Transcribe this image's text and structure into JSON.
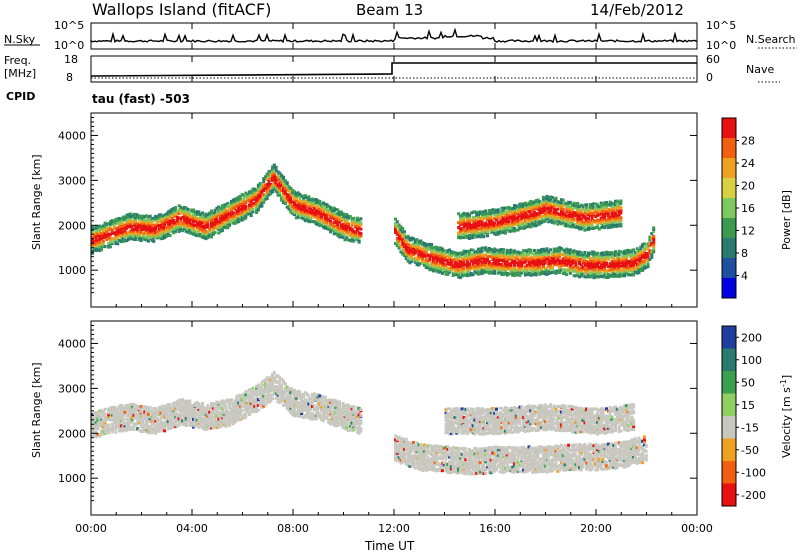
{
  "header": {
    "station": "Wallops Island (fitACF)",
    "beam": "Beam 13",
    "date": "14/Feb/2012"
  },
  "noise_panel": {
    "left_label": "N.Sky",
    "left_ticks": [
      "10^5",
      "10^0"
    ],
    "right_label": "N.Search",
    "right_ticks": [
      "10^5",
      "10^0"
    ]
  },
  "freq_panel": {
    "left_label_1": "Freq.",
    "left_label_2": "[MHz]",
    "left_ticks": [
      "18",
      "8"
    ],
    "right_label": "Nave",
    "right_ticks": [
      "60",
      "0"
    ],
    "cpid_label": "CPID",
    "cpid_value": "tau (fast) -503"
  },
  "x_axis": {
    "label": "Time UT",
    "ticks": [
      "00:00",
      "04:00",
      "08:00",
      "12:00",
      "16:00",
      "20:00",
      "00:00"
    ]
  },
  "chart_data": [
    {
      "type": "heatmap",
      "name": "power-panel",
      "ylabel": "Slant Range [km]",
      "ylim": [
        180,
        4500
      ],
      "y_ticks": [
        "4000",
        "3000",
        "2000",
        "1000"
      ],
      "y_tick_values": [
        4000,
        3000,
        2000,
        1000
      ],
      "xlim_hours": [
        0,
        24
      ],
      "colorbar": {
        "label": "Power [dB]",
        "ticks": [
          "28",
          "24",
          "20",
          "16",
          "12",
          "8",
          "4"
        ],
        "tick_values": [
          28,
          24,
          20,
          16,
          12,
          8,
          4
        ],
        "range": [
          0,
          32
        ],
        "colors": [
          "#0000e0",
          "#1f4fa0",
          "#2a7a70",
          "#3a9a50",
          "#7ec860",
          "#d8d040",
          "#f0a020",
          "#f06010",
          "#e81010"
        ]
      },
      "scatter_bands": [
        {
          "t": [
            0,
            0.5,
            1.5,
            2.5,
            3.5,
            4.5,
            5.5,
            6.5,
            7.2,
            8,
            9,
            10,
            10.7
          ],
          "range_km": [
            1700,
            1800,
            2000,
            1950,
            2200,
            2000,
            2300,
            2600,
            3100,
            2500,
            2300,
            2000,
            1900
          ],
          "power_db": 28
        },
        {
          "t": [
            12,
            12.5,
            13.5,
            14.5,
            15.5,
            16.5,
            17.5,
            18.5,
            19.5,
            20.5,
            21.5,
            22,
            22.3
          ],
          "range_km": [
            1900,
            1500,
            1300,
            1150,
            1250,
            1200,
            1200,
            1250,
            1150,
            1150,
            1200,
            1400,
            1800
          ],
          "power_db": 28
        },
        {
          "t": [
            14.5,
            16,
            17.5,
            18,
            19.5,
            21
          ],
          "range_km": [
            2000,
            2100,
            2300,
            2400,
            2200,
            2300
          ],
          "power_db": 24
        }
      ]
    },
    {
      "type": "heatmap",
      "name": "velocity-panel",
      "ylabel": "Slant Range [km]",
      "ylim": [
        180,
        4500
      ],
      "y_ticks": [
        "4000",
        "3000",
        "2000",
        "1000"
      ],
      "y_tick_values": [
        4000,
        3000,
        2000,
        1000
      ],
      "xlim_hours": [
        0,
        24
      ],
      "colorbar": {
        "label": "Velocity [m s^-1]",
        "ticks": [
          "200",
          "100",
          "50",
          "15",
          "-15",
          "-50",
          "-100",
          "-200"
        ],
        "colors": [
          "#1f3fa0",
          "#2a7a70",
          "#3aa050",
          "#90d060",
          "#c8c8c0",
          "#f0a020",
          "#f06010",
          "#e81010"
        ]
      },
      "scatter_bands": [
        {
          "t": [
            0,
            0.5,
            1.5,
            2.5,
            3.5,
            4.5,
            5.5,
            6.5,
            7.2,
            8,
            9,
            10,
            10.7
          ],
          "range_km": [
            2200,
            2300,
            2400,
            2300,
            2500,
            2400,
            2500,
            2800,
            3100,
            2700,
            2600,
            2400,
            2300
          ],
          "velocity": 0
        },
        {
          "t": [
            12,
            13,
            14,
            15,
            16,
            17,
            18,
            19,
            20,
            21,
            22
          ],
          "range_km": [
            1700,
            1500,
            1450,
            1400,
            1450,
            1450,
            1450,
            1500,
            1500,
            1550,
            1700
          ],
          "velocity": 0
        },
        {
          "t": [
            14,
            16,
            18,
            20,
            21.5
          ],
          "range_km": [
            2300,
            2300,
            2400,
            2300,
            2400
          ],
          "velocity": 0
        }
      ]
    }
  ]
}
